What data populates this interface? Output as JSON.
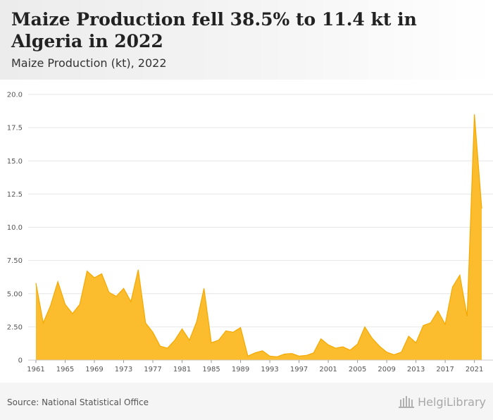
{
  "header": {
    "title": "Maize Production fell 38.5% to 11.4 kt in Algeria in 2022",
    "subtitle": "Maize Production (kt), 2022"
  },
  "footer": {
    "source": "Source: National Statistical Office",
    "logo_text": "HelgiLibrary",
    "logo_icon": "library-building-icon"
  },
  "colors": {
    "area_fill": "#FBBD2E",
    "area_stroke": "#F5A800",
    "grid": "#e6e6e6"
  },
  "chart_data": {
    "type": "area",
    "title": "Maize Production fell 38.5% to 11.4 kt in Algeria in 2022",
    "subtitle": "Maize Production (kt), 2022",
    "xlabel": "",
    "ylabel": "",
    "xlim": [
      1961,
      2022
    ],
    "ylim": [
      0,
      20
    ],
    "grid": true,
    "y_ticks": [
      "0",
      "2.50",
      "5.00",
      "7.50",
      "10.0",
      "12.5",
      "15.0",
      "17.5",
      "20.0"
    ],
    "y_tick_values": [
      0,
      2.5,
      5,
      7.5,
      10,
      12.5,
      15,
      17.5,
      20
    ],
    "x_ticks": [
      "1961",
      "1965",
      "1969",
      "1973",
      "1977",
      "1981",
      "1985",
      "1989",
      "1993",
      "1997",
      "2001",
      "2005",
      "2009",
      "2013",
      "2017",
      "2021"
    ],
    "x": [
      1961,
      1962,
      1963,
      1964,
      1965,
      1966,
      1967,
      1968,
      1969,
      1970,
      1971,
      1972,
      1973,
      1974,
      1975,
      1976,
      1977,
      1978,
      1979,
      1980,
      1981,
      1982,
      1983,
      1984,
      1985,
      1986,
      1987,
      1988,
      1989,
      1990,
      1991,
      1992,
      1993,
      1994,
      1995,
      1996,
      1997,
      1998,
      1999,
      2000,
      2001,
      2002,
      2003,
      2004,
      2005,
      2006,
      2007,
      2008,
      2009,
      2010,
      2011,
      2012,
      2013,
      2014,
      2015,
      2016,
      2017,
      2018,
      2019,
      2020,
      2021,
      2022
    ],
    "series": [
      {
        "values": [
          5.8,
          2.8,
          4.1,
          5.9,
          4.2,
          3.5,
          4.2,
          6.7,
          6.2,
          6.5,
          5.1,
          4.8,
          5.4,
          4.4,
          6.8,
          2.8,
          2.1,
          1.05,
          0.9,
          1.5,
          2.35,
          1.5,
          2.9,
          5.4,
          1.3,
          1.5,
          2.2,
          2.1,
          2.45,
          0.3,
          0.55,
          0.7,
          0.3,
          0.25,
          0.45,
          0.5,
          0.3,
          0.35,
          0.55,
          1.6,
          1.15,
          0.9,
          1.0,
          0.75,
          1.2,
          2.5,
          1.65,
          1.05,
          0.6,
          0.4,
          0.6,
          1.8,
          1.3,
          2.6,
          2.8,
          3.7,
          2.7,
          5.5,
          6.4,
          3.3,
          18.5,
          11.4
        ]
      }
    ]
  }
}
